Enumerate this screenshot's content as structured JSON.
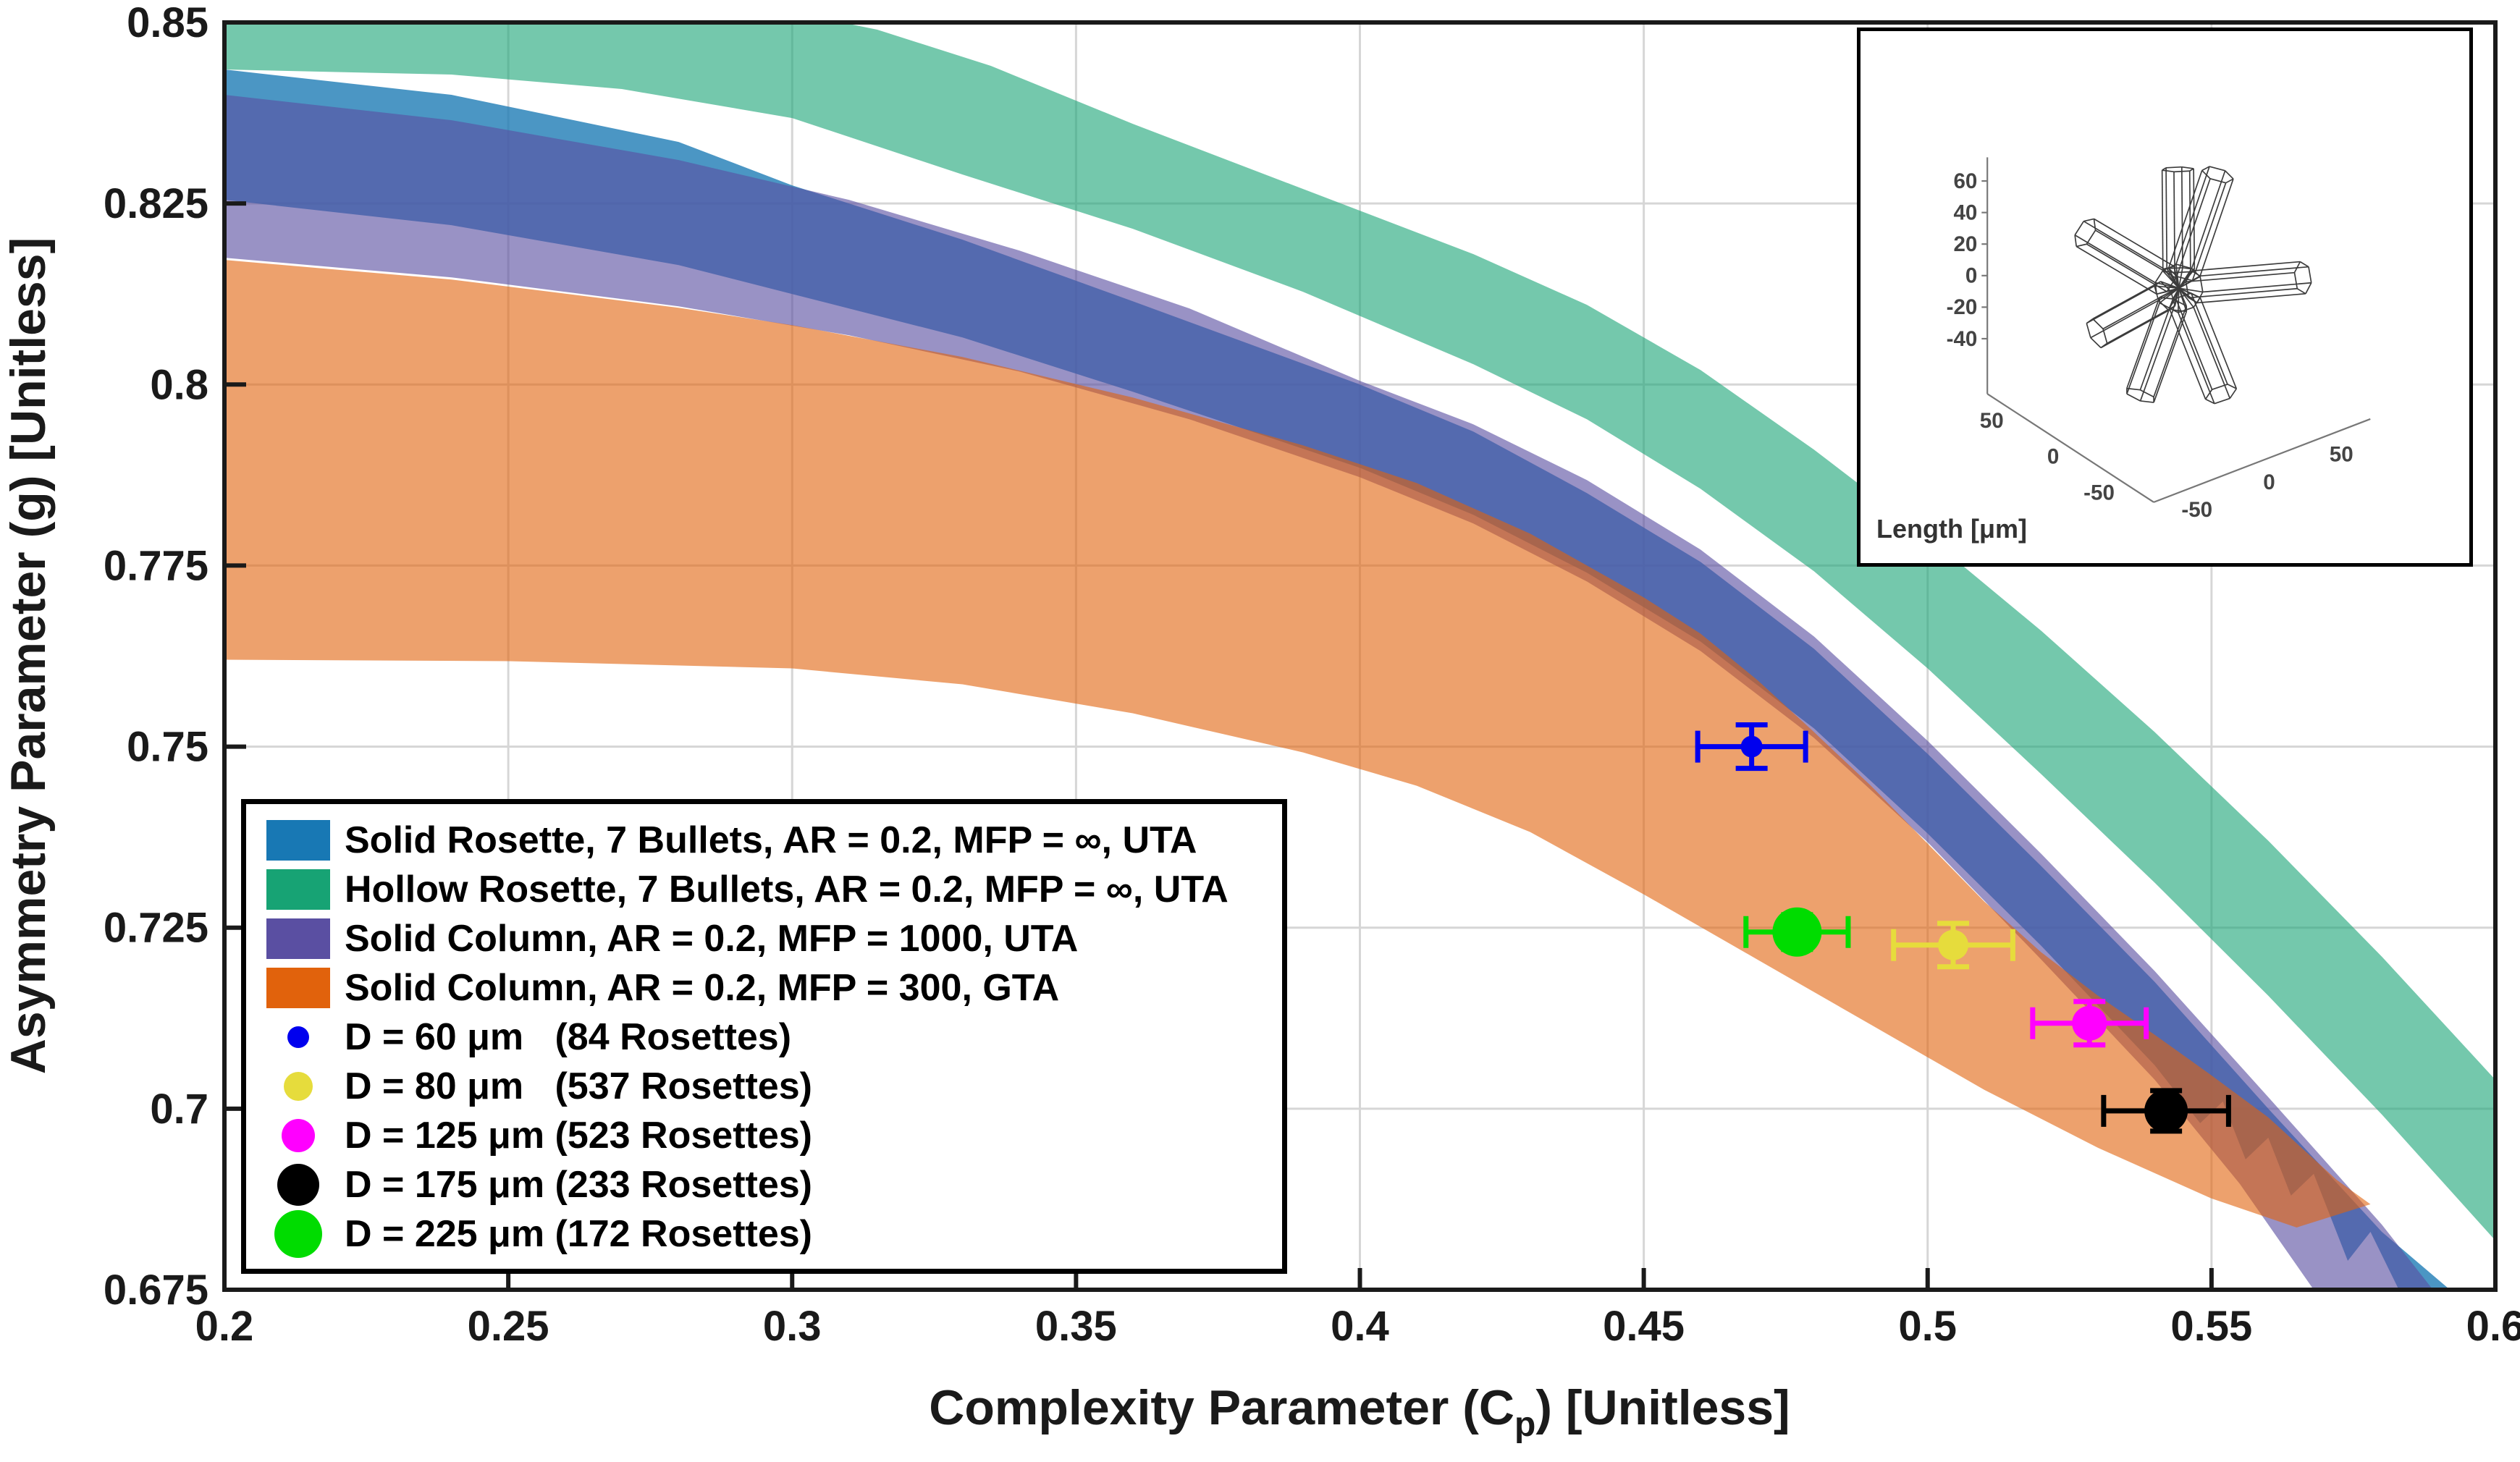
{
  "figure": {
    "background": "#ffffff"
  },
  "axes": {
    "x": {
      "label_pre": "Complexity Parameter (C",
      "label_sub": "p",
      "label_post": ") [Unitless]",
      "min": 0.2,
      "max": 0.6,
      "ticks": [
        "0.2",
        "0.25",
        "0.3",
        "0.35",
        "0.4",
        "0.45",
        "0.5",
        "0.55",
        "0.6"
      ]
    },
    "y": {
      "label": "Asymmetry Parameter (g) [Unitless]",
      "min": 0.675,
      "max": 0.85,
      "ticks": [
        "0.675",
        "0.7",
        "0.725",
        "0.75",
        "0.775",
        "0.8",
        "0.825",
        "0.85"
      ]
    }
  },
  "chart_data": {
    "type": "area",
    "subtype": "uncertainty-bands-with-scatter-errorbars",
    "title": "",
    "xlabel": "Complexity Parameter (C_p) [Unitless]",
    "ylabel": "Asymmetry Parameter (g) [Unitless]",
    "xlim": [
      0.2,
      0.6
    ],
    "ylim": [
      0.675,
      0.85
    ],
    "grid": true,
    "legend_position": "bottom-left",
    "bands": [
      {
        "name": "Solid Rosette, 7 Bullets, AR = 0.2, MFP = ∞, UTA",
        "color": "#1878B4",
        "opacity": 0.78,
        "upper": [
          [
            0.2,
            0.8435
          ],
          [
            0.24,
            0.84
          ],
          [
            0.28,
            0.8335
          ],
          [
            0.3,
            0.8275
          ],
          [
            0.33,
            0.82
          ],
          [
            0.36,
            0.8115
          ],
          [
            0.4,
            0.8
          ],
          [
            0.42,
            0.7935
          ],
          [
            0.44,
            0.785
          ],
          [
            0.46,
            0.7755
          ],
          [
            0.48,
            0.7635
          ],
          [
            0.5,
            0.749
          ],
          [
            0.52,
            0.7335
          ],
          [
            0.54,
            0.7175
          ],
          [
            0.56,
            0.7
          ],
          [
            0.58,
            0.683
          ],
          [
            0.592,
            0.675
          ]
        ],
        "lower": [
          [
            0.2,
            0.8255
          ],
          [
            0.24,
            0.822
          ],
          [
            0.28,
            0.8165
          ],
          [
            0.3,
            0.8125
          ],
          [
            0.33,
            0.8065
          ],
          [
            0.36,
            0.799
          ],
          [
            0.4,
            0.7885
          ],
          [
            0.42,
            0.782
          ],
          [
            0.44,
            0.774
          ],
          [
            0.46,
            0.7645
          ],
          [
            0.48,
            0.7525
          ],
          [
            0.5,
            0.738
          ],
          [
            0.52,
            0.7225
          ],
          [
            0.54,
            0.706
          ],
          [
            0.548,
            0.698
          ],
          [
            0.552,
            0.701
          ],
          [
            0.556,
            0.693
          ],
          [
            0.56,
            0.696
          ],
          [
            0.564,
            0.688
          ],
          [
            0.568,
            0.691
          ],
          [
            0.574,
            0.679
          ],
          [
            0.578,
            0.683
          ],
          [
            0.583,
            0.675
          ]
        ]
      },
      {
        "name": "Solid Column, AR = 0.2, MFP = 1000, UTA",
        "color": "#5A4FA2",
        "opacity": 0.62,
        "upper": [
          [
            0.2,
            0.84
          ],
          [
            0.24,
            0.8365
          ],
          [
            0.28,
            0.831
          ],
          [
            0.31,
            0.8255
          ],
          [
            0.34,
            0.8185
          ],
          [
            0.37,
            0.8105
          ],
          [
            0.4,
            0.8005
          ],
          [
            0.42,
            0.7945
          ],
          [
            0.44,
            0.7868
          ],
          [
            0.46,
            0.7772
          ],
          [
            0.48,
            0.7652
          ],
          [
            0.5,
            0.7508
          ],
          [
            0.52,
            0.7352
          ],
          [
            0.54,
            0.719
          ],
          [
            0.56,
            0.7016
          ],
          [
            0.58,
            0.684
          ],
          [
            0.592,
            0.672
          ]
        ],
        "lower": [
          [
            0.2,
            0.8175
          ],
          [
            0.24,
            0.8148
          ],
          [
            0.28,
            0.8108
          ],
          [
            0.31,
            0.8068
          ],
          [
            0.34,
            0.8018
          ],
          [
            0.37,
            0.7952
          ],
          [
            0.4,
            0.7872
          ],
          [
            0.42,
            0.7808
          ],
          [
            0.44,
            0.7728
          ],
          [
            0.46,
            0.7632
          ],
          [
            0.48,
            0.7512
          ],
          [
            0.5,
            0.7368
          ],
          [
            0.52,
            0.7206
          ],
          [
            0.54,
            0.704
          ],
          [
            0.555,
            0.6896
          ],
          [
            0.568,
            0.675
          ]
        ]
      },
      {
        "name": "Solid Column, AR = 0.2, MFP = 300, GTA",
        "color": "#E1620C",
        "opacity": 0.6,
        "upper": [
          [
            0.2,
            0.8172
          ],
          [
            0.24,
            0.8145
          ],
          [
            0.28,
            0.8106
          ],
          [
            0.3,
            0.8082
          ],
          [
            0.33,
            0.8038
          ],
          [
            0.36,
            0.7982
          ],
          [
            0.39,
            0.7916
          ],
          [
            0.41,
            0.7864
          ],
          [
            0.43,
            0.7794
          ],
          [
            0.45,
            0.7706
          ],
          [
            0.46,
            0.7656
          ],
          [
            0.47,
            0.7592
          ],
          [
            0.48,
            0.752
          ],
          [
            0.49,
            0.7446
          ],
          [
            0.5,
            0.7366
          ],
          [
            0.51,
            0.7286
          ],
          [
            0.52,
            0.7216
          ],
          [
            0.53,
            0.7156
          ],
          [
            0.54,
            0.7102
          ],
          [
            0.55,
            0.7046
          ],
          [
            0.56,
            0.6988
          ],
          [
            0.572,
            0.6902
          ],
          [
            0.578,
            0.6868
          ]
        ],
        "lower": [
          [
            0.2,
            0.762
          ],
          [
            0.25,
            0.7618
          ],
          [
            0.3,
            0.7608
          ],
          [
            0.33,
            0.7586
          ],
          [
            0.36,
            0.7546
          ],
          [
            0.39,
            0.7492
          ],
          [
            0.41,
            0.7446
          ],
          [
            0.43,
            0.7382
          ],
          [
            0.45,
            0.7296
          ],
          [
            0.47,
            0.7206
          ],
          [
            0.49,
            0.7116
          ],
          [
            0.51,
            0.7026
          ],
          [
            0.53,
            0.6946
          ],
          [
            0.55,
            0.6876
          ],
          [
            0.565,
            0.6836
          ],
          [
            0.578,
            0.6868
          ]
        ]
      },
      {
        "name": "Hollow Rosette, 7 Bullets, AR = 0.2, MFP = ∞, UTA",
        "color": "#17A374",
        "opacity": 0.6,
        "upper": [
          [
            0.2,
            0.856
          ],
          [
            0.26,
            0.8555
          ],
          [
            0.29,
            0.853
          ],
          [
            0.315,
            0.849
          ],
          [
            0.335,
            0.844
          ],
          [
            0.36,
            0.836
          ],
          [
            0.39,
            0.827
          ],
          [
            0.42,
            0.818
          ],
          [
            0.44,
            0.811
          ],
          [
            0.46,
            0.802
          ],
          [
            0.48,
            0.791
          ],
          [
            0.5,
            0.779
          ],
          [
            0.52,
            0.766
          ],
          [
            0.54,
            0.752
          ],
          [
            0.56,
            0.737
          ],
          [
            0.58,
            0.721
          ],
          [
            0.6,
            0.704
          ]
        ],
        "lower": [
          [
            0.2,
            0.8435
          ],
          [
            0.24,
            0.8428
          ],
          [
            0.27,
            0.8408
          ],
          [
            0.3,
            0.8368
          ],
          [
            0.33,
            0.829
          ],
          [
            0.36,
            0.8215
          ],
          [
            0.39,
            0.8128
          ],
          [
            0.42,
            0.8028
          ],
          [
            0.44,
            0.7952
          ],
          [
            0.46,
            0.7856
          ],
          [
            0.48,
            0.7742
          ],
          [
            0.5,
            0.7608
          ],
          [
            0.52,
            0.7462
          ],
          [
            0.54,
            0.7312
          ],
          [
            0.56,
            0.7156
          ],
          [
            0.58,
            0.6992
          ],
          [
            0.6,
            0.6818
          ]
        ]
      }
    ],
    "points": [
      {
        "name": "D = 60 μm (84 Rosettes)",
        "x": 0.469,
        "y": 0.75,
        "xerr": 0.0095,
        "yerr": 0.003,
        "color": "#0000EE",
        "radius": 15
      },
      {
        "name": "D = 80 μm (537 Rosettes)",
        "x": 0.5045,
        "y": 0.7226,
        "xerr": 0.0105,
        "yerr": 0.003,
        "color": "#E6DC3C",
        "radius": 21
      },
      {
        "name": "D = 125 μm (523 Rosettes)",
        "x": 0.5285,
        "y": 0.7118,
        "xerr": 0.01,
        "yerr": 0.003,
        "color": "#FF00FF",
        "radius": 24
      },
      {
        "name": "D = 175 μm (233 Rosettes)",
        "x": 0.542,
        "y": 0.6997,
        "xerr": 0.011,
        "yerr": 0.0028,
        "color": "#000000",
        "radius": 30
      },
      {
        "name": "D = 225 μm (172 Rosettes)",
        "x": 0.477,
        "y": 0.7244,
        "xerr": 0.009,
        "yerr": 0.0024,
        "color": "#00DC00",
        "radius": 34
      }
    ]
  },
  "legend": {
    "entries": [
      {
        "type": "patch",
        "color": "#1878B4",
        "label": "Solid Rosette, 7 Bullets, AR = 0.2, MFP = ∞, UTA"
      },
      {
        "type": "patch",
        "color": "#17A374",
        "label": "Hollow Rosette, 7 Bullets, AR = 0.2, MFP = ∞, UTA"
      },
      {
        "type": "patch",
        "color": "#5A4FA2",
        "label": "Solid Column, AR = 0.2, MFP = 1000, UTA"
      },
      {
        "type": "patch",
        "color": "#E1620C",
        "label": "Solid Column, AR = 0.2, MFP = 300, GTA"
      },
      {
        "type": "dot",
        "color": "#0000EE",
        "size": 30,
        "label": "D = 60 μm   (84 Rosettes)"
      },
      {
        "type": "dot",
        "color": "#E6DC3C",
        "size": 40,
        "label": "D = 80 μm   (537 Rosettes)"
      },
      {
        "type": "dot",
        "color": "#FF00FF",
        "size": 46,
        "label": "D = 125 μm (523 Rosettes)"
      },
      {
        "type": "dot",
        "color": "#000000",
        "size": 58,
        "label": "D = 175 μm (233 Rosettes)"
      },
      {
        "type": "dot",
        "color": "#00DC00",
        "size": 66,
        "label": "D = 225 μm (172 Rosettes)"
      }
    ]
  },
  "inset": {
    "label": "Length [μm]",
    "z_ticks": {
      "values": [
        60,
        40,
        20,
        0,
        -20,
        -40
      ],
      "labels": [
        "60",
        "40",
        "20",
        "0",
        "-20",
        "-40"
      ]
    },
    "left_axis_ticks": {
      "positions": [
        -50,
        0,
        50
      ],
      "labels": [
        "50",
        "0",
        "-50"
      ]
    },
    "right_axis_ticks": {
      "positions": [
        -50,
        0,
        50
      ],
      "labels": [
        "-50",
        "0",
        "50"
      ]
    },
    "rosette": {
      "radius": 9,
      "arms": [
        {
          "dir": [
            0.12,
            0.3,
            1.0
          ],
          "len": 72
        },
        {
          "dir": [
            -0.3,
            0.22,
            0.95
          ],
          "len": 66
        },
        {
          "dir": [
            1.0,
            0.5,
            0.38
          ],
          "len": 80
        },
        {
          "dir": [
            0.95,
            -0.28,
            -0.5
          ],
          "len": 72
        },
        {
          "dir": [
            -1.0,
            -0.18,
            0.12
          ],
          "len": 70
        },
        {
          "dir": [
            0.38,
            -0.7,
            -0.62
          ],
          "len": 66
        },
        {
          "dir": [
            -0.62,
            -0.5,
            -0.6
          ],
          "len": 58
        }
      ]
    }
  }
}
